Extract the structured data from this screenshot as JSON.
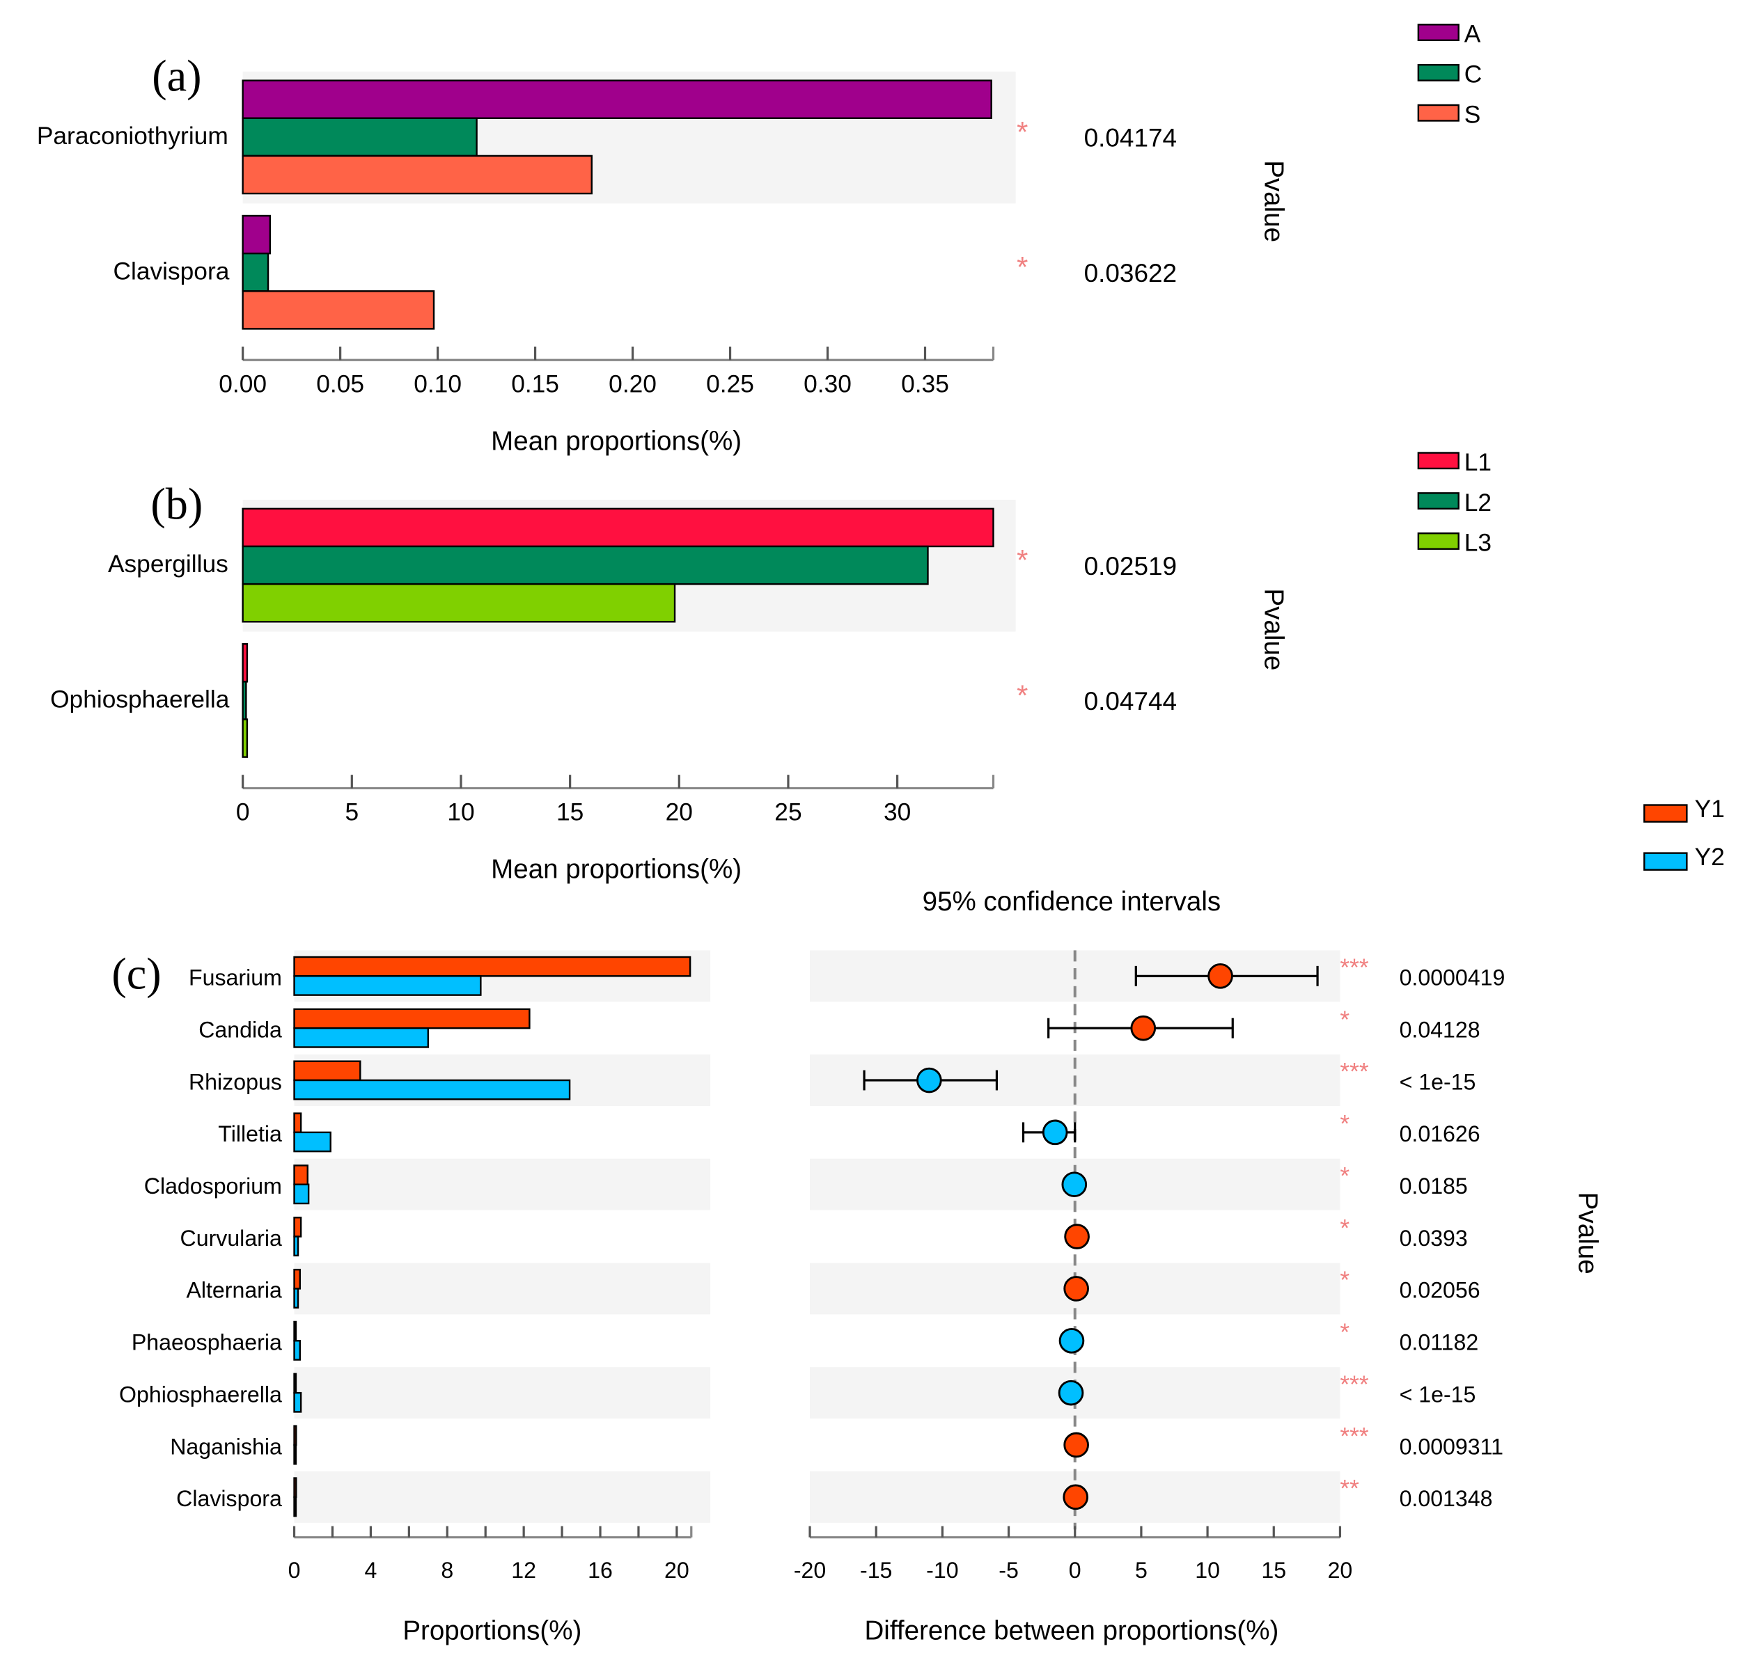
{
  "colors": {
    "A": "#a0008c",
    "C": "#00895a",
    "S": "#ff6347",
    "L1": "#ff1040",
    "L2": "#00895a",
    "L3": "#80d000",
    "Y1": "#ff4500",
    "Y2": "#00bfff",
    "star": "#f08080",
    "band": "#f4f4f4"
  },
  "chart_data": [
    {
      "type": "bar",
      "panel_label": "(a)",
      "categories": [
        "Paraconiothyrium",
        "Clavispora"
      ],
      "series": [
        {
          "name": "A",
          "values": [
            0.384,
            0.014
          ]
        },
        {
          "name": "C",
          "values": [
            0.12,
            0.013
          ]
        },
        {
          "name": "S",
          "values": [
            0.179,
            0.098
          ]
        }
      ],
      "stars": [
        "*",
        "*"
      ],
      "pvalues": [
        "0.04174",
        "0.03622"
      ],
      "pvalue_label": "Pvalue",
      "xlabel": "Mean proportions(%)",
      "xticks": [
        "0.00",
        "0.05",
        "0.10",
        "0.15",
        "0.20",
        "0.25",
        "0.30",
        "0.35"
      ],
      "xtick_values": [
        0,
        0.05,
        0.1,
        0.15,
        0.2,
        0.25,
        0.3,
        0.35
      ],
      "xlim": [
        0,
        0.385
      ],
      "legend": [
        "A",
        "C",
        "S"
      ],
      "legend_position": "top-right"
    },
    {
      "type": "bar",
      "panel_label": "(b)",
      "categories": [
        "Aspergillus",
        "Ophiosphaerella"
      ],
      "series": [
        {
          "name": "L1",
          "values": [
            34.4,
            0.2
          ]
        },
        {
          "name": "L2",
          "values": [
            31.4,
            0.15
          ]
        },
        {
          "name": "L3",
          "values": [
            19.8,
            0.2
          ]
        }
      ],
      "stars": [
        "*",
        "*"
      ],
      "pvalues": [
        "0.02519",
        "0.04744"
      ],
      "pvalue_label": "Pvalue",
      "xlabel": "Mean proportions(%)",
      "xticks": [
        "0",
        "5",
        "10",
        "15",
        "20",
        "25",
        "30"
      ],
      "xtick_values": [
        0,
        5,
        10,
        15,
        20,
        25,
        30
      ],
      "xlim": [
        0,
        34.4
      ],
      "legend": [
        "L1",
        "L2",
        "L3"
      ],
      "legend_position": "top-right"
    },
    {
      "type": "bar",
      "panel_label": "(c)",
      "categories": [
        "Fusarium",
        "Candida",
        "Rhizopus",
        "Tilletia",
        "Cladosporium",
        "Curvularia",
        "Alternaria",
        "Phaeosphaeria",
        "Ophiosphaerella",
        "Naganishia",
        "Clavispora"
      ],
      "series": [
        {
          "name": "Y1",
          "values": [
            20.7,
            12.3,
            3.45,
            0.35,
            0.7,
            0.35,
            0.3,
            0.05,
            0.05,
            0.1,
            0.1
          ]
        },
        {
          "name": "Y2",
          "values": [
            9.75,
            7.0,
            14.4,
            1.9,
            0.75,
            0.2,
            0.2,
            0.3,
            0.35,
            0.02,
            0.05
          ]
        }
      ],
      "xlabel": "Proportions(%)",
      "xticks": [
        "0",
        "4",
        "8",
        "12",
        "16",
        "20"
      ],
      "xtick_values": [
        0,
        4,
        8,
        12,
        16,
        20
      ],
      "xlim": [
        0,
        20.7
      ],
      "legend": [
        "Y1",
        "Y2"
      ],
      "legend_position": "top-right"
    },
    {
      "type": "scatter",
      "title": "95% confidence intervals",
      "categories": [
        "Fusarium",
        "Candida",
        "Rhizopus",
        "Tilletia",
        "Cladosporium",
        "Curvularia",
        "Alternaria",
        "Phaeosphaeria",
        "Ophiosphaerella",
        "Naganishia",
        "Clavispora"
      ],
      "difference": [
        10.97,
        5.15,
        -11.0,
        -1.5,
        -0.05,
        0.15,
        0.1,
        -0.25,
        -0.3,
        0.1,
        0.05
      ],
      "ci_low": [
        4.6,
        -2.0,
        -15.9,
        -3.9,
        -0.3,
        -0.1,
        -0.1,
        -0.4,
        -0.45,
        -0.05,
        -0.05
      ],
      "ci_high": [
        18.3,
        11.9,
        -5.9,
        0.0,
        0.3,
        0.35,
        0.25,
        -0.1,
        -0.15,
        0.2,
        0.15
      ],
      "higher_group": [
        "Y1",
        "Y1",
        "Y2",
        "Y2",
        "Y2",
        "Y1",
        "Y1",
        "Y2",
        "Y2",
        "Y1",
        "Y1"
      ],
      "stars": [
        "***",
        "*",
        "***",
        "*",
        "*",
        "*",
        "*",
        "*",
        "***",
        "***",
        "**"
      ],
      "pvalues": [
        "0.0000419",
        "0.04128",
        "< 1e-15",
        "0.01626",
        "0.0185",
        "0.0393",
        "0.02056",
        "0.01182",
        "< 1e-15",
        "0.0009311",
        "0.001348"
      ],
      "pvalue_label": "Pvalue",
      "xlabel": "Difference between proportions(%)",
      "xticks": [
        "-20",
        "-15",
        "-10",
        "-5",
        "0",
        "5",
        "10",
        "15",
        "20"
      ],
      "xtick_values": [
        -20,
        -15,
        -10,
        -5,
        0,
        5,
        10,
        15,
        20
      ],
      "xlim": [
        -20,
        20
      ]
    }
  ]
}
